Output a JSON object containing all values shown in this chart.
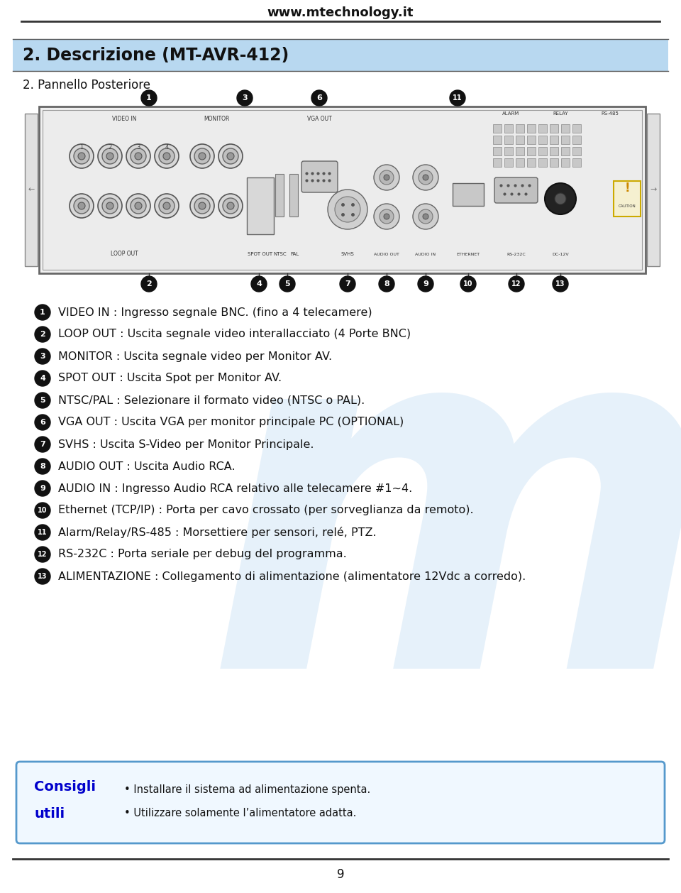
{
  "bg_color": "#ffffff",
  "header_url": "www.mtechnology.it",
  "section_bg": "#b8d8f0",
  "section_title": "2. Descrizione (MT-AVR-412)",
  "subtitle": "2. Pannello Posteriore",
  "items": [
    {
      "num": "1",
      "text": "VIDEO IN : Ingresso segnale BNC. (fino a 4 telecamere)"
    },
    {
      "num": "2",
      "text": "LOOP OUT : Uscita segnale video interallacciato (4 Porte BNC)"
    },
    {
      "num": "3",
      "text": "MONITOR : Uscita segnale video per Monitor AV."
    },
    {
      "num": "4",
      "text": "SPOT OUT : Uscita Spot per Monitor AV."
    },
    {
      "num": "5",
      "text": "NTSC/PAL : Selezionare il formato video (NTSC o PAL)."
    },
    {
      "num": "6",
      "text": "VGA OUT : Uscita VGA per monitor principale PC (OPTIONAL)"
    },
    {
      "num": "7",
      "text": "SVHS : Uscita S-Video per Monitor Principale."
    },
    {
      "num": "8",
      "text": "AUDIO OUT : Uscita Audio RCA."
    },
    {
      "num": "9",
      "text": "AUDIO IN : Ingresso Audio RCA relativo alle telecamere #1~4."
    },
    {
      "num": "10",
      "text": "Ethernet (TCP/IP) : Porta per cavo crossato (per sorveglianza da remoto)."
    },
    {
      "num": "11",
      "text": "Alarm/Relay/RS-485 : Morsettiere per sensori, relé, PTZ."
    },
    {
      "num": "12",
      "text": "RS-232C : Porta seriale per debug del programma."
    },
    {
      "num": "13",
      "text": "ALIMENTAZIONE : Collegamento di alimentazione (alimentatore 12Vdc a corredo)."
    }
  ],
  "tip_title": "Consigli\nutili",
  "tip_lines": [
    "• Installare il sistema ad alimentazione spenta.",
    "• Utilizzare solamente l’alimentatore adatta."
  ],
  "page_num": "9",
  "watermark_color": "#c8e0f4",
  "circle_color": "#111111",
  "circle_text_color": "#ffffff",
  "text_color": "#111111",
  "tip_title_color": "#0000cc",
  "tip_bg": "#f0f8ff",
  "tip_border": "#5599cc"
}
